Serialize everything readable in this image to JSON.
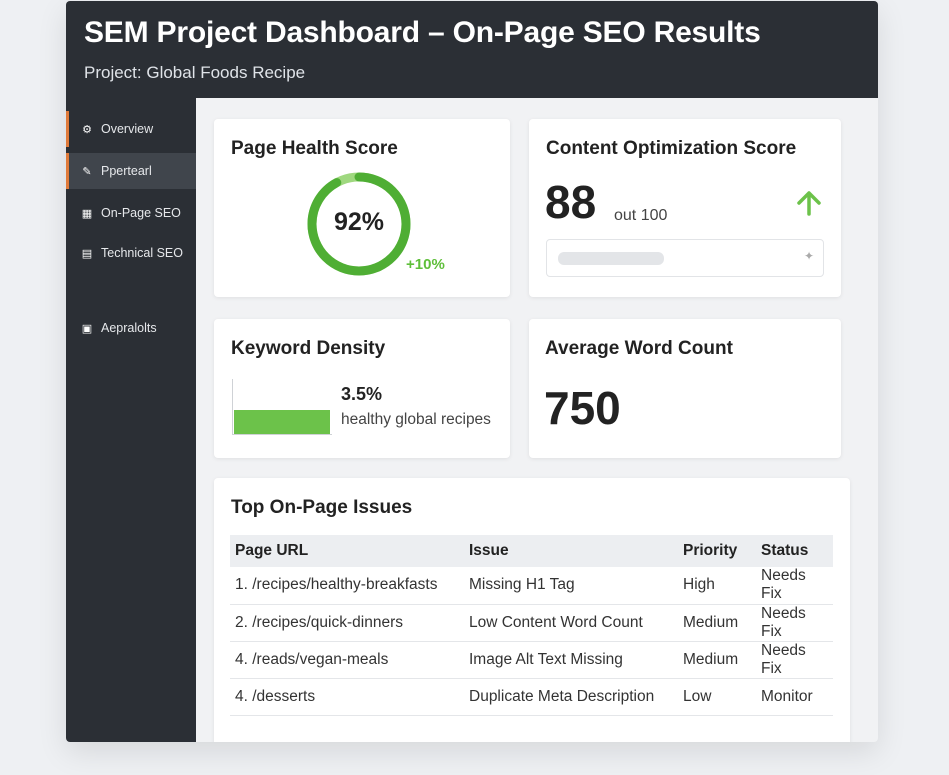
{
  "header": {
    "title": "SEM Project Dashboard – On-Page SEO Results",
    "subtitle": "Project: Global Foods Recipe"
  },
  "sidebar": {
    "items": [
      {
        "label": "Overview",
        "icon": "gear-icon",
        "marked": true,
        "active": false
      },
      {
        "label": "Ppertearl",
        "icon": "pencil-icon",
        "marked": true,
        "active": true
      },
      {
        "label": "On-Page SEO",
        "icon": "layout-icon",
        "marked": false,
        "active": false
      },
      {
        "label": "Technical SEO",
        "icon": "document-icon",
        "marked": false,
        "active": false
      },
      {
        "label": "Aepralolts",
        "icon": "report-icon",
        "marked": false,
        "active": false
      }
    ]
  },
  "cards": {
    "health": {
      "title": "Page Health Score",
      "value": "92%",
      "percent": 92,
      "change": "+10%"
    },
    "content": {
      "title": "Content Optimization Score",
      "score": "88",
      "unit": "out 100",
      "trend": "up",
      "progress_pill": "",
      "expand_glyph": "✦"
    },
    "keyword": {
      "title": "Keyword Density",
      "value": "3.5%",
      "label": "healthy global recipes"
    },
    "words": {
      "title": "Average Word Count",
      "value": "750"
    }
  },
  "issues": {
    "title": "Top On-Page Issues",
    "headers": [
      "Page URL",
      "Issue",
      "Priority",
      "Status"
    ],
    "rows": [
      {
        "url": "1. /recipes/healthy-breakfasts",
        "issue": "Missing H1 Tag",
        "priority": "High",
        "status": "Needs Fix",
        "highlight": true
      },
      {
        "url": "2. /recipes/quick-dinners",
        "issue": "Low Content Word Count",
        "priority": "Medium",
        "status": "Needs Fix",
        "highlight": true
      },
      {
        "url": "4. /reads/vegan-meals",
        "issue": "Image Alt Text Missing",
        "priority": "Medium",
        "status": "Needs Fix",
        "highlight": true
      },
      {
        "url": "4. /desserts",
        "issue": "Duplicate Meta Description",
        "priority": "Low",
        "status": "Monitor",
        "highlight": false
      }
    ]
  },
  "colors": {
    "accent_orange": "#e07a2e",
    "green": "#6cc24a",
    "dark": "#2b2f35"
  }
}
